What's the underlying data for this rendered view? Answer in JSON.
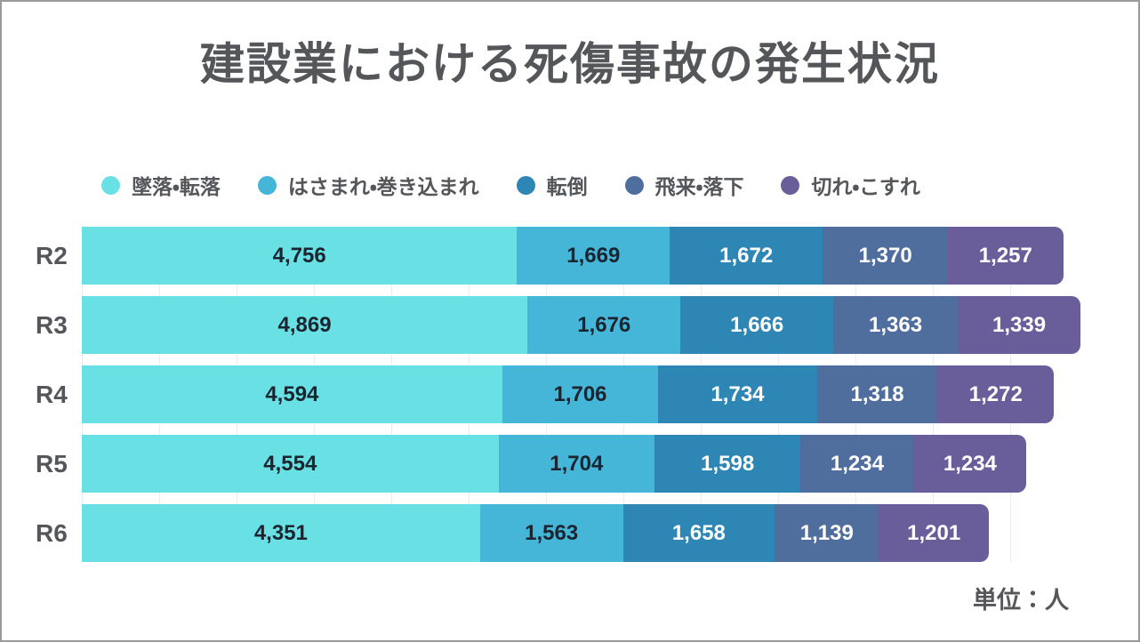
{
  "title": "建設業における死傷事故の発生状況",
  "unit_note": "単位：人",
  "colors": {
    "title_text": "#55565a",
    "page_border": "#9a9a9a",
    "grid_line": "#e7eef0",
    "dark_value_text": "#1b2530",
    "light_value_text": "#ffffff"
  },
  "chart_data": {
    "type": "bar",
    "stacked": true,
    "orientation": "horizontal",
    "legend_position": "top",
    "grid": "faint-vertical",
    "axis_max": 10913,
    "categories": [
      "R2",
      "R3",
      "R4",
      "R5",
      "R6"
    ],
    "series": [
      {
        "name": "墜落・転落",
        "color": "#69e0e4",
        "label_style": "dark",
        "values": [
          4756,
          4869,
          4594,
          4554,
          4351
        ]
      },
      {
        "name": "はさまれ・巻き込まれ",
        "color": "#45b5d8",
        "label_style": "dark",
        "values": [
          1669,
          1676,
          1706,
          1704,
          1563
        ]
      },
      {
        "name": "転倒",
        "color": "#2e86b4",
        "label_style": "light",
        "values": [
          1672,
          1666,
          1734,
          1598,
          1658
        ]
      },
      {
        "name": "飛来・落下",
        "color": "#4f6e9e",
        "label_style": "light",
        "values": [
          1370,
          1363,
          1318,
          1234,
          1139
        ]
      },
      {
        "name": "切れ・こすれ",
        "color": "#695e99",
        "label_style": "light",
        "values": [
          1257,
          1339,
          1272,
          1234,
          1201
        ]
      }
    ],
    "value_labels": [
      [
        "4,756",
        "1,669",
        "1,672",
        "1,370",
        "1,257"
      ],
      [
        "4,869",
        "1,676",
        "1,666",
        "1,363",
        "1,339"
      ],
      [
        "4,594",
        "1,706",
        "1,734",
        "1,318",
        "1,272"
      ],
      [
        "4,554",
        "1,704",
        "1,598",
        "1,234",
        "1,234"
      ],
      [
        "4,351",
        "1,563",
        "1,658",
        "1,139",
        "1,201"
      ]
    ]
  }
}
